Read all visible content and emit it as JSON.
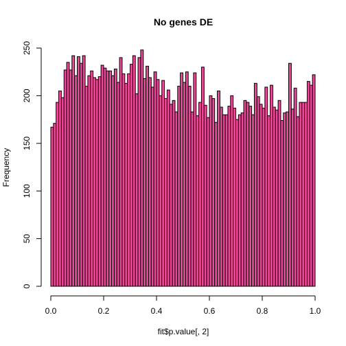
{
  "chart_data": {
    "type": "bar",
    "title": "No genes DE",
    "xlabel": "fit$p.value[, 2]",
    "ylabel": "Frequency",
    "xlim": [
      0,
      1
    ],
    "ylim": [
      0,
      250
    ],
    "bin_width": 0.01,
    "bin_start": 0.0,
    "x_ticks": [
      {
        "value": 0.0,
        "label": "0.0"
      },
      {
        "value": 0.2,
        "label": "0.2"
      },
      {
        "value": 0.4,
        "label": "0.4"
      },
      {
        "value": 0.6,
        "label": "0.6"
      },
      {
        "value": 0.8,
        "label": "0.8"
      },
      {
        "value": 1.0,
        "label": "1.0"
      }
    ],
    "y_ticks": [
      {
        "value": 0,
        "label": "0"
      },
      {
        "value": 50,
        "label": "50"
      },
      {
        "value": 100,
        "label": "100"
      },
      {
        "value": 150,
        "label": "150"
      },
      {
        "value": 200,
        "label": "200"
      },
      {
        "value": 250,
        "label": "250"
      }
    ],
    "bar_color": "#F0479A",
    "edge_color": "#000000",
    "grid": false,
    "values": [
      167,
      171,
      193,
      205,
      198,
      227,
      235,
      227,
      242,
      221,
      241,
      234,
      242,
      210,
      221,
      226,
      219,
      217,
      220,
      232,
      229,
      226,
      226,
      221,
      228,
      214,
      240,
      223,
      213,
      223,
      233,
      242,
      202,
      240,
      248,
      218,
      231,
      219,
      209,
      225,
      217,
      200,
      216,
      197,
      206,
      191,
      195,
      183,
      210,
      224,
      214,
      225,
      210,
      183,
      224,
      179,
      193,
      230,
      190,
      177,
      200,
      197,
      172,
      205,
      188,
      180,
      180,
      189,
      200,
      187,
      175,
      180,
      182,
      195,
      193,
      189,
      180,
      213,
      199,
      191,
      187,
      209,
      179,
      211,
      188,
      185,
      195,
      174,
      182,
      183,
      234,
      186,
      208,
      178,
      193,
      193,
      193,
      215,
      211,
      222
    ]
  }
}
